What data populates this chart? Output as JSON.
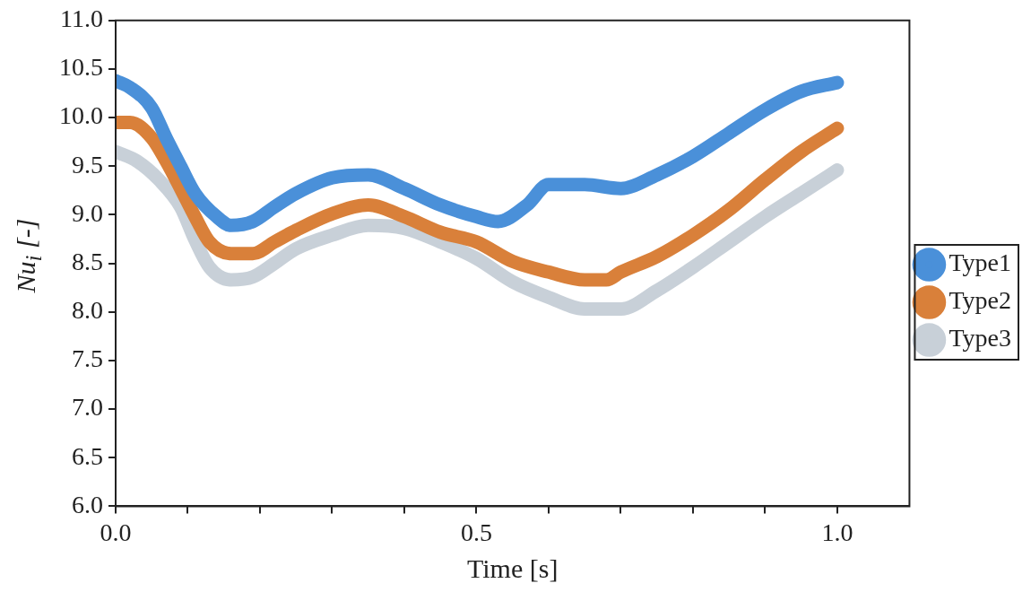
{
  "chart_data": {
    "type": "line",
    "xlabel": "Time [s]",
    "ylabel": "Nu$_{i}$ [-]",
    "xlim": [
      0,
      1.1
    ],
    "xticks": [
      {
        "value": 0,
        "label": "0.0"
      },
      {
        "value": 0.1,
        "label": null
      },
      {
        "value": 0.2,
        "label": null
      },
      {
        "value": 0.3,
        "label": null
      },
      {
        "value": 0.4,
        "label": null
      },
      {
        "value": 0.5,
        "label": "0.5"
      },
      {
        "value": 0.6,
        "label": null
      },
      {
        "value": 0.7,
        "label": null
      },
      {
        "value": 0.8,
        "label": null
      },
      {
        "value": 0.9,
        "label": null
      },
      {
        "value": 1.0,
        "label": "1.0"
      }
    ],
    "ylim": [
      6,
      11
    ],
    "yticks": [
      {
        "value": 6,
        "label": "6.0"
      },
      {
        "value": 6.5,
        "label": "6.5"
      },
      {
        "value": 7,
        "label": "7.0"
      },
      {
        "value": 7.5,
        "label": "7.5"
      },
      {
        "value": 8,
        "label": "8.0"
      },
      {
        "value": 8.5,
        "label": "8.5"
      },
      {
        "value": 9,
        "label": "9.0"
      },
      {
        "value": 9.5,
        "label": "9.5"
      },
      {
        "value": 10,
        "label": "10.0"
      },
      {
        "value": 10.5,
        "label": "10.5"
      },
      {
        "value": 11,
        "label": "11.0"
      }
    ],
    "grid": false,
    "legend": "right",
    "marker": "none",
    "line_style": "solid",
    "series": [
      {
        "name": "Type1",
        "color": "#4a90d9",
        "x": [
          0,
          0.02,
          0.05,
          0.07,
          0.09,
          0.11,
          0.14,
          0.16,
          0.19,
          0.22,
          0.25,
          0.3,
          0.35,
          0.4,
          0.45,
          0.5,
          0.53,
          0.57,
          0.6,
          0.65,
          0.7,
          0.75,
          0.8,
          0.85,
          0.9,
          0.95,
          1.0
        ],
        "values": [
          10.38,
          10.31,
          10.1,
          9.79,
          9.5,
          9.22,
          8.98,
          8.89,
          8.93,
          9.08,
          9.22,
          9.38,
          9.41,
          9.27,
          9.1,
          8.98,
          8.93,
          9.1,
          9.31,
          9.31,
          9.27,
          9.41,
          9.6,
          9.84,
          10.08,
          10.27,
          10.36
        ]
      },
      {
        "name": "Type2",
        "color": "#d9803a",
        "x": [
          0,
          0.02,
          0.05,
          0.07,
          0.09,
          0.11,
          0.13,
          0.16,
          0.19,
          0.22,
          0.25,
          0.3,
          0.35,
          0.4,
          0.45,
          0.5,
          0.55,
          0.6,
          0.65,
          0.68,
          0.7,
          0.75,
          0.8,
          0.85,
          0.9,
          0.95,
          1.0
        ],
        "values": [
          9.95,
          9.95,
          9.79,
          9.55,
          9.27,
          8.98,
          8.72,
          8.6,
          8.6,
          8.72,
          8.84,
          9.01,
          9.1,
          8.98,
          8.82,
          8.72,
          8.52,
          8.41,
          8.33,
          8.33,
          8.41,
          8.57,
          8.79,
          9.05,
          9.36,
          9.65,
          9.89
        ]
      },
      {
        "name": "Type3",
        "color": "#c8d0d8",
        "x": [
          0,
          0.03,
          0.06,
          0.09,
          0.11,
          0.13,
          0.16,
          0.19,
          0.22,
          0.25,
          0.3,
          0.35,
          0.4,
          0.45,
          0.5,
          0.55,
          0.6,
          0.65,
          0.7,
          0.75,
          0.8,
          0.85,
          0.9,
          0.95,
          1.0
        ],
        "values": [
          9.65,
          9.55,
          9.36,
          9.08,
          8.74,
          8.46,
          8.33,
          8.36,
          8.5,
          8.65,
          8.79,
          8.89,
          8.86,
          8.72,
          8.55,
          8.31,
          8.15,
          8.03,
          8.03,
          8.22,
          8.46,
          8.72,
          8.98,
          9.22,
          9.46
        ]
      }
    ]
  }
}
